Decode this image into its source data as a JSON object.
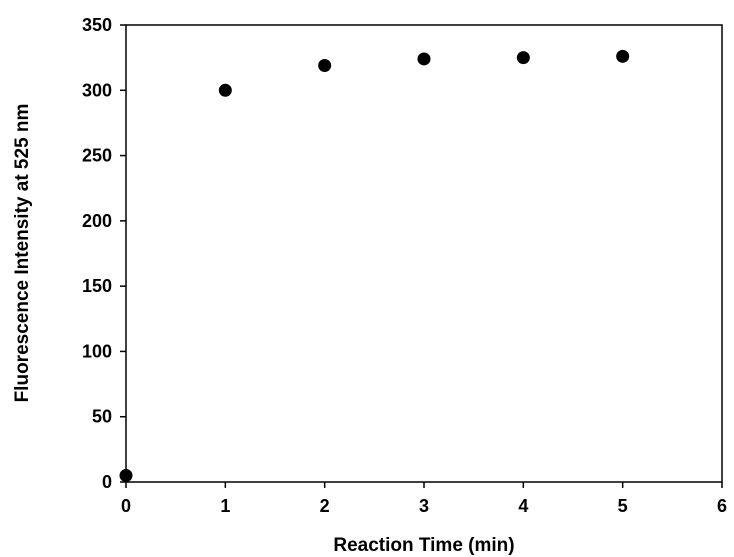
{
  "chart_data": {
    "type": "scatter",
    "title": "",
    "xlabel": "Reaction Time (min)",
    "ylabel": "Fluorescence Intensity at 525 nm",
    "xlim": [
      0,
      6
    ],
    "ylim": [
      0,
      350
    ],
    "xticks": [
      0,
      1,
      2,
      3,
      4,
      5,
      6
    ],
    "yticks": [
      0,
      50,
      100,
      150,
      200,
      250,
      300,
      350
    ],
    "grid": false,
    "legend": "none",
    "marker_color": "#000000",
    "series": [
      {
        "x": [
          0,
          1,
          2,
          3,
          4,
          5
        ],
        "y": [
          5,
          300,
          319,
          324,
          325,
          326
        ]
      }
    ]
  }
}
